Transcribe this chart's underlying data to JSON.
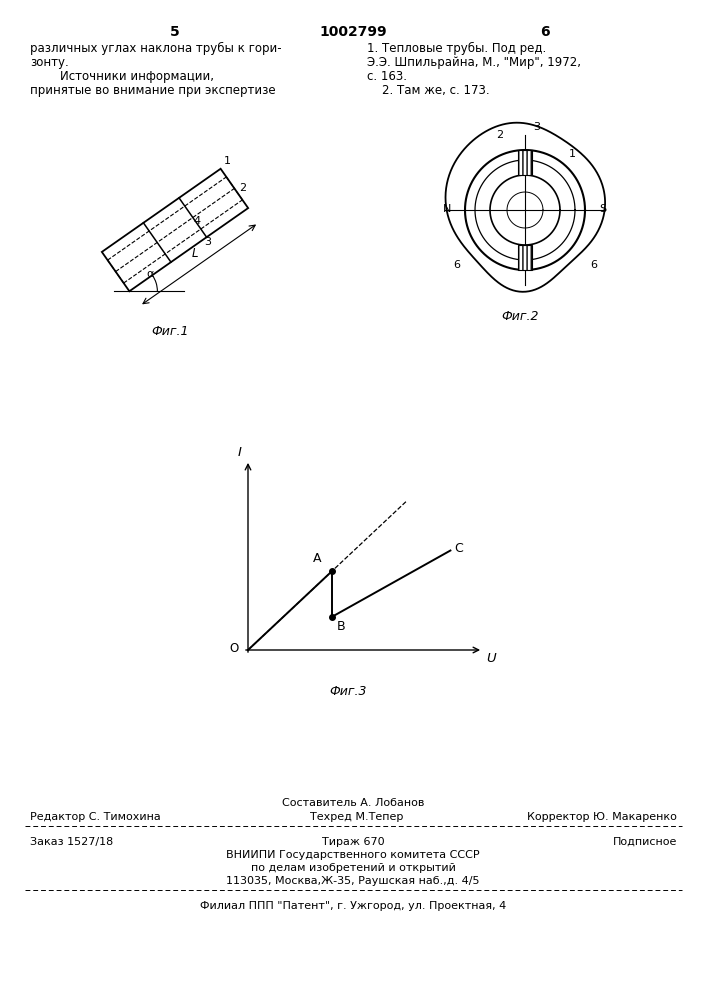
{
  "page_number_left": "5",
  "page_number_center": "1002799",
  "page_number_right": "6",
  "text_left_col": [
    "различных углах наклона трубы к гори-",
    "зонту.",
    "        Источники информации,",
    "принятые во внимание при экспертизе"
  ],
  "text_right_col": [
    "1. Тепловые трубы. Под ред.",
    "Э.Э. Шпильрайна, М., \"Мир\", 1972,",
    "с. 163.",
    "    2. Там же, с. 173."
  ],
  "fig1_caption": "Фиг.1",
  "fig2_caption": "Фиг.2",
  "fig3_caption": "Фиг.3",
  "footer_editor": "Редактор С. Тимохина",
  "footer_composer1": "Составитель А. Лобанов",
  "footer_composer2": "Техред М.Тепер",
  "footer_corrector": "Корректор Ю. Макаренко",
  "footer_order": "Заказ 1527/18",
  "footer_copies": "Тираж 670",
  "footer_signed": "Подписное",
  "footer_line3": "ВНИИПИ Государственного комитета СССР",
  "footer_line4": "по делам изобретений и открытий",
  "footer_line5": "113035, Москва,Ж-35, Раушская наб.,д. 4/5",
  "footer_line6": "Филиал ППП \"Патент\", г. Ужгород, ул. Проектная, 4",
  "bg_color": "#ffffff",
  "text_color": "#000000"
}
